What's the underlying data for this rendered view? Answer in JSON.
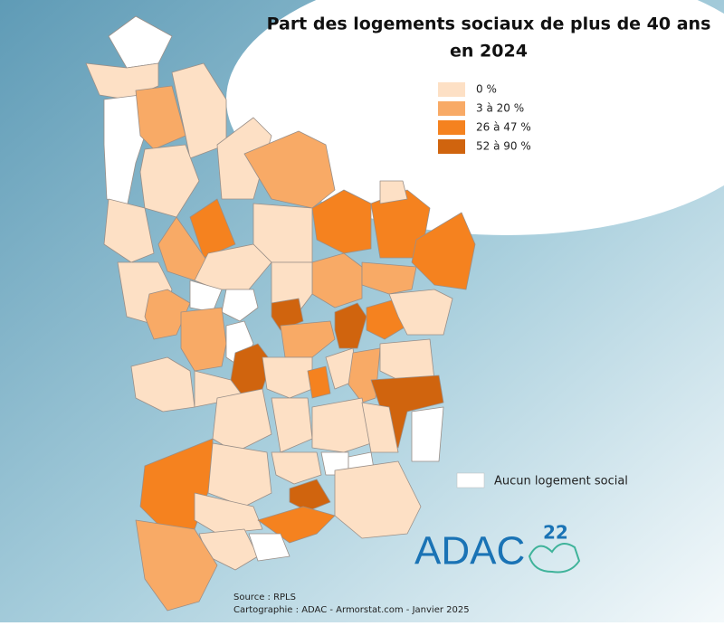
{
  "header": {
    "title": [
      "Part des logements sociaux de plus de 40 ans",
      "en 2024"
    ]
  },
  "legend": {
    "items": [
      {
        "label": "0 %",
        "color": "#fde0c5"
      },
      {
        "label": "3 à 20 %",
        "color": "#f8aa66"
      },
      {
        "label": "26 à 47 %",
        "color": "#f5821f"
      },
      {
        "label": "52 à 90 %",
        "color": "#d0640e"
      }
    ],
    "none": {
      "label": "Aucun logement social",
      "color": "#ffffff"
    }
  },
  "footer": {
    "source": "Source : RPLS",
    "credits": "Cartographie : ADAC - Armorstat.com - Janvier 2025"
  },
  "logo": {
    "name": "ADAC",
    "number": "22"
  }
}
